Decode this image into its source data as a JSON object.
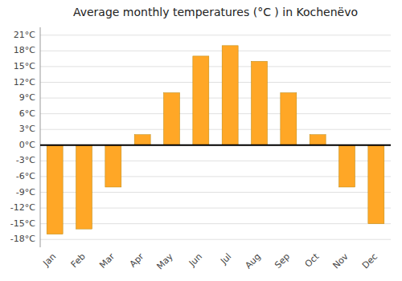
{
  "chart_data": {
    "type": "bar",
    "title": "Average monthly temperatures (°C ) in Kochenëvo",
    "categories": [
      "Jan",
      "Feb",
      "Mar",
      "Apr",
      "May",
      "Jun",
      "Jul",
      "Aug",
      "Sep",
      "Oct",
      "Nov",
      "Dec"
    ],
    "values": [
      -17,
      -16,
      -8,
      2,
      10,
      17,
      19,
      16,
      10,
      2,
      -8,
      -15
    ],
    "color": "#FFA726",
    "ylim": [
      -19.5,
      22.5
    ],
    "yticks": [
      {
        "value": -18,
        "label": "-18°C"
      },
      {
        "value": -15,
        "label": "-15°C"
      },
      {
        "value": -12,
        "label": "-12°C"
      },
      {
        "value": -9,
        "label": "-9°C"
      },
      {
        "value": -6,
        "label": "-6°C"
      },
      {
        "value": -3,
        "label": "-3°C"
      },
      {
        "value": 0,
        "label": "0°C"
      },
      {
        "value": 3,
        "label": "3°C"
      },
      {
        "value": 6,
        "label": "6°C"
      },
      {
        "value": 9,
        "label": "9°C"
      },
      {
        "value": 12,
        "label": "12°C"
      },
      {
        "value": 15,
        "label": "15°C"
      },
      {
        "value": 18,
        "label": "18°C"
      },
      {
        "value": 21,
        "label": "21°C"
      }
    ],
    "grid": true
  }
}
